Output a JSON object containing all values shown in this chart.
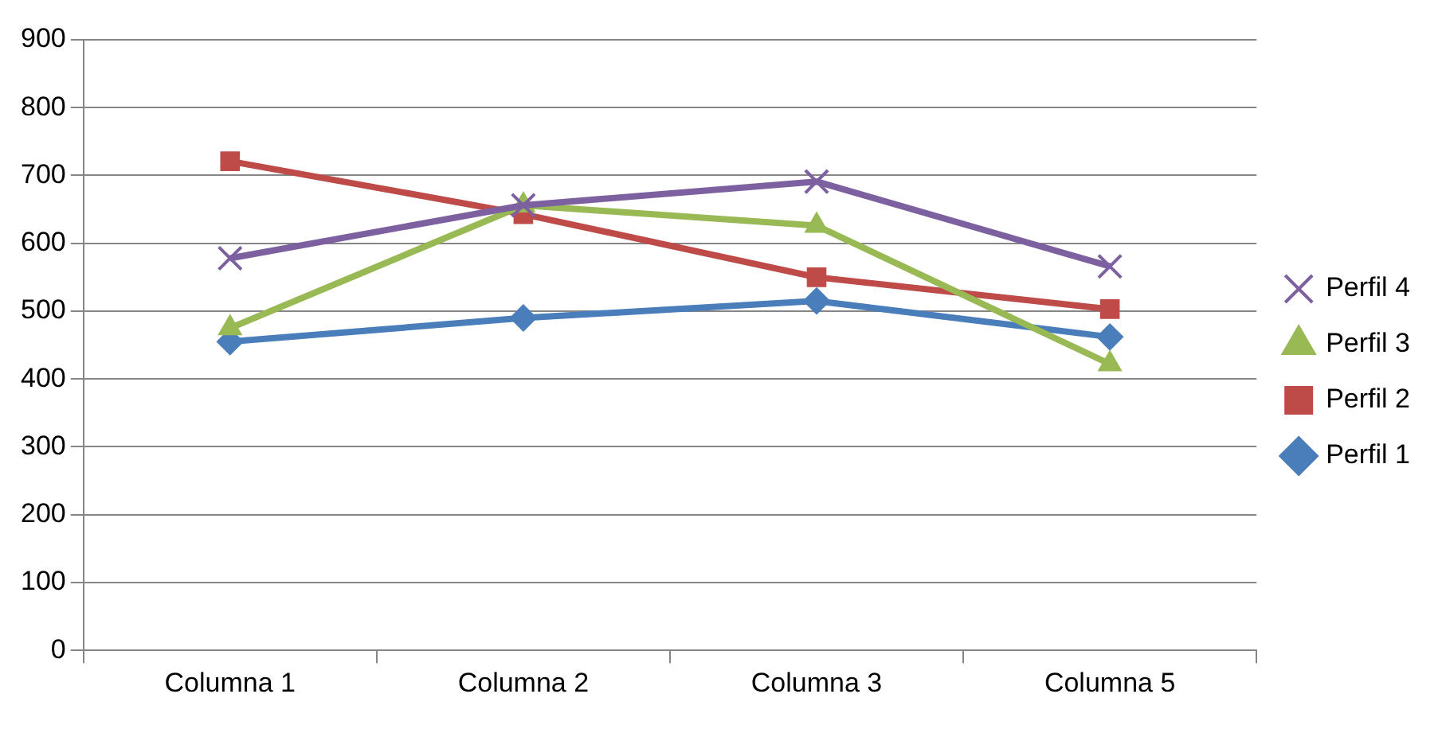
{
  "chart_data": {
    "type": "line",
    "categories": [
      "Columna 1",
      "Columna 2",
      "Columna 3",
      "Columna 5"
    ],
    "series": [
      {
        "name": "Perfil 1",
        "color": "#4a7ebb",
        "marker": "diamond",
        "values": [
          455,
          490,
          515,
          462
        ]
      },
      {
        "name": "Perfil 2",
        "color": "#be4b48",
        "marker": "square",
        "values": [
          721,
          643,
          550,
          503
        ]
      },
      {
        "name": "Perfil 3",
        "color": "#98b954",
        "marker": "triangle",
        "values": [
          475,
          656,
          626,
          422
        ]
      },
      {
        "name": "Perfil 4",
        "color": "#7d60a0",
        "marker": "cross",
        "values": [
          578,
          656,
          691,
          566
        ]
      }
    ],
    "ylim": [
      0,
      900
    ],
    "yticks": [
      0,
      100,
      200,
      300,
      400,
      500,
      600,
      700,
      800,
      900
    ],
    "grid": "y",
    "legend": "right",
    "line_style": "solid"
  }
}
